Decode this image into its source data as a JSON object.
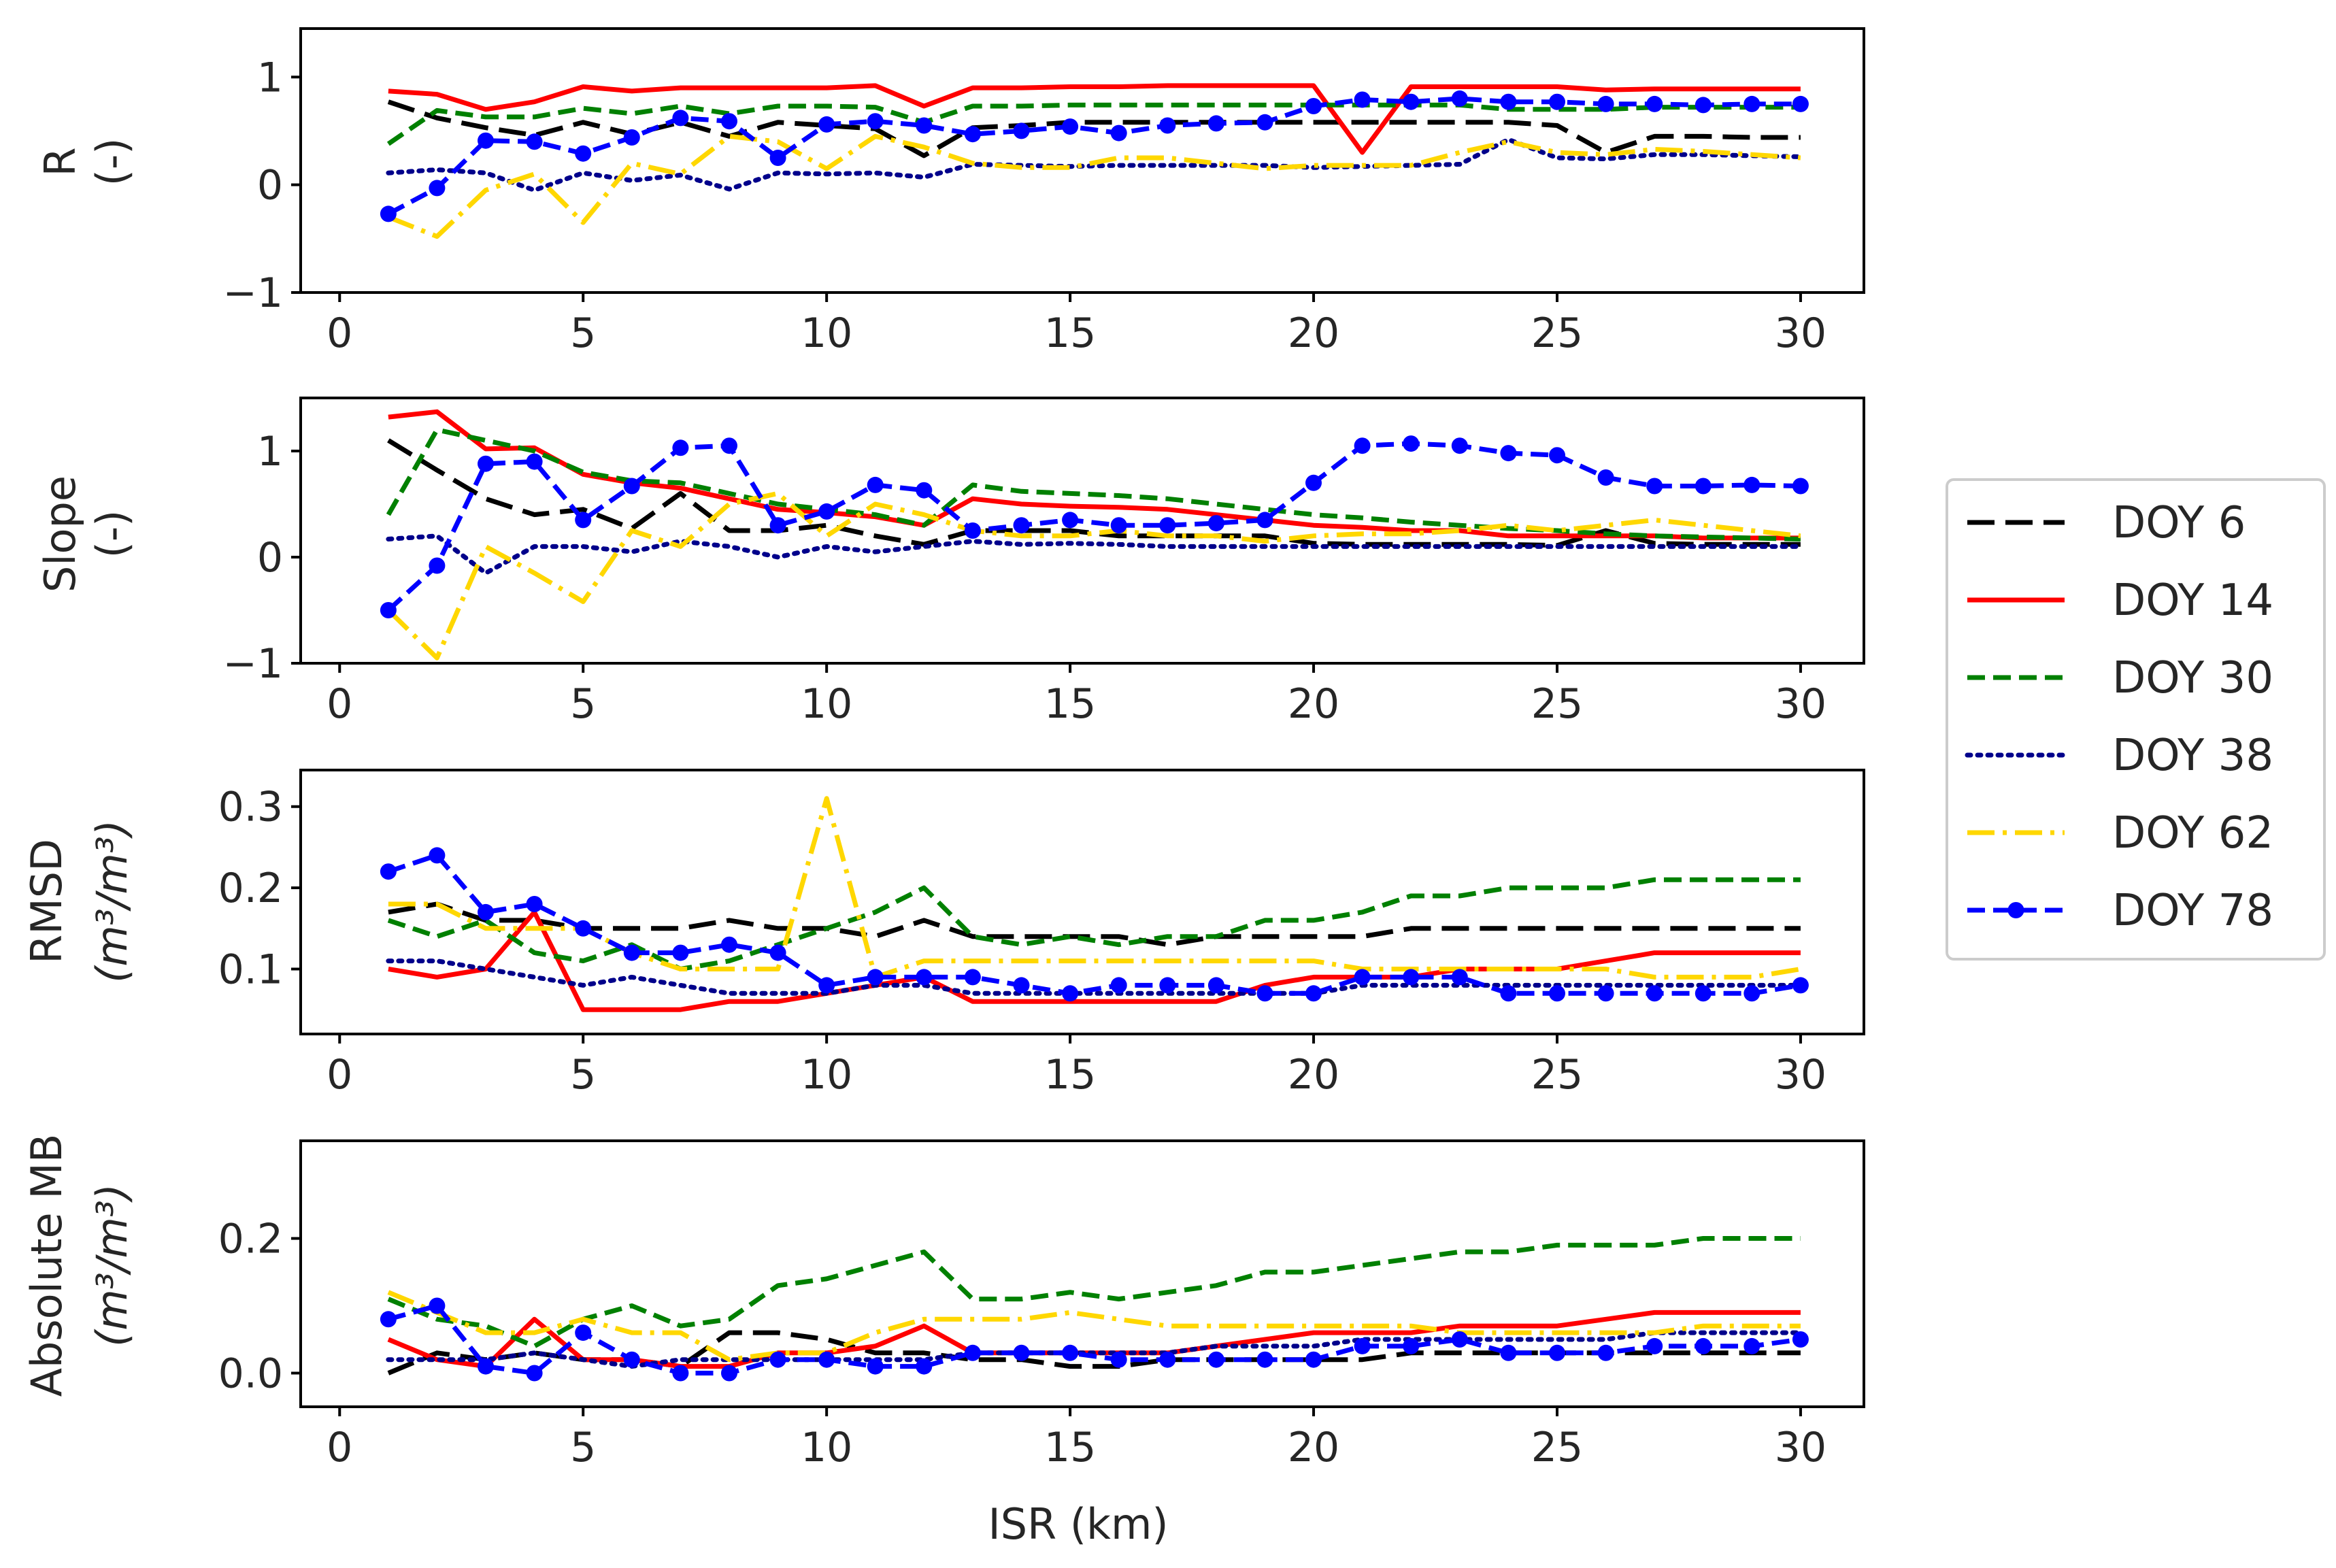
{
  "figure": {
    "xlabel": "ISR (km)",
    "legend_position": "center-right",
    "legend_title": ""
  },
  "chart_data": [
    {
      "type": "line",
      "title": "",
      "xlabel": "",
      "ylabel": "R",
      "ylabel_unit": "(-)",
      "xlim": [
        -0.8,
        31.3
      ],
      "ylim": [
        -1,
        1.45
      ],
      "xticks": [
        0,
        5,
        10,
        15,
        20,
        25,
        30
      ],
      "yticks": [
        -1,
        0,
        1
      ],
      "ytick_labels": [
        "−1",
        "0",
        "1"
      ],
      "x": [
        1,
        2,
        3,
        4,
        5,
        6,
        7,
        8,
        9,
        10,
        11,
        12,
        13,
        14,
        15,
        16,
        17,
        18,
        19,
        20,
        21,
        22,
        23,
        24,
        25,
        26,
        27,
        28,
        29,
        30
      ],
      "series": [
        {
          "name": "DOY 6",
          "color": "#000000",
          "values": [
            0.77,
            0.62,
            0.53,
            0.46,
            0.58,
            0.47,
            0.58,
            0.45,
            0.58,
            0.55,
            0.52,
            0.27,
            0.53,
            0.55,
            0.58,
            0.58,
            0.58,
            0.58,
            0.58,
            0.58,
            0.58,
            0.58,
            0.58,
            0.58,
            0.55,
            0.3,
            0.45,
            0.45,
            0.44,
            0.44
          ]
        },
        {
          "name": "DOY 14",
          "color": "#ff0000",
          "values": [
            0.87,
            0.84,
            0.7,
            0.77,
            0.91,
            0.87,
            0.9,
            0.9,
            0.9,
            0.9,
            0.92,
            0.73,
            0.9,
            0.9,
            0.91,
            0.91,
            0.92,
            0.92,
            0.92,
            0.92,
            0.3,
            0.91,
            0.91,
            0.91,
            0.91,
            0.88,
            0.89,
            0.89,
            0.89,
            0.89
          ]
        },
        {
          "name": "DOY 30",
          "color": "#008000",
          "values": [
            0.38,
            0.69,
            0.63,
            0.63,
            0.71,
            0.66,
            0.73,
            0.66,
            0.73,
            0.73,
            0.72,
            0.58,
            0.73,
            0.73,
            0.74,
            0.74,
            0.74,
            0.74,
            0.74,
            0.74,
            0.74,
            0.74,
            0.74,
            0.7,
            0.7,
            0.7,
            0.72,
            0.72,
            0.72,
            0.72
          ]
        },
        {
          "name": "DOY 38",
          "color": "#00008b",
          "values": [
            0.11,
            0.14,
            0.11,
            -0.05,
            0.11,
            0.04,
            0.09,
            -0.04,
            0.11,
            0.1,
            0.11,
            0.07,
            0.19,
            0.18,
            0.17,
            0.18,
            0.18,
            0.18,
            0.18,
            0.16,
            0.17,
            0.18,
            0.19,
            0.42,
            0.25,
            0.24,
            0.28,
            0.28,
            0.27,
            0.26
          ]
        },
        {
          "name": "DOY 62",
          "color": "#ffd700",
          "values": [
            -0.3,
            -0.48,
            -0.05,
            0.1,
            -0.35,
            0.2,
            0.1,
            0.45,
            0.4,
            0.15,
            0.45,
            0.35,
            0.2,
            0.16,
            0.16,
            0.25,
            0.25,
            0.2,
            0.15,
            0.18,
            0.18,
            0.18,
            0.3,
            0.4,
            0.3,
            0.28,
            0.33,
            0.31,
            0.28,
            0.25
          ]
        },
        {
          "name": "DOY 78",
          "color": "#0000ff",
          "values": [
            -0.27,
            -0.03,
            0.41,
            0.4,
            0.29,
            0.44,
            0.62,
            0.59,
            0.25,
            0.56,
            0.59,
            0.55,
            0.47,
            0.5,
            0.54,
            0.48,
            0.55,
            0.57,
            0.58,
            0.73,
            0.79,
            0.77,
            0.8,
            0.77,
            0.77,
            0.75,
            0.75,
            0.74,
            0.75,
            0.75
          ]
        }
      ]
    },
    {
      "type": "line",
      "title": "",
      "xlabel": "",
      "ylabel": "Slope",
      "ylabel_unit": "(-)",
      "xlim": [
        -0.8,
        31.3
      ],
      "ylim": [
        -1,
        1.5
      ],
      "xticks": [
        0,
        5,
        10,
        15,
        20,
        25,
        30
      ],
      "yticks": [
        -1,
        0,
        1
      ],
      "ytick_labels": [
        "−1",
        "0",
        "1"
      ],
      "x": [
        1,
        2,
        3,
        4,
        5,
        6,
        7,
        8,
        9,
        10,
        11,
        12,
        13,
        14,
        15,
        16,
        17,
        18,
        19,
        20,
        21,
        22,
        23,
        24,
        25,
        26,
        27,
        28,
        29,
        30
      ],
      "series": [
        {
          "name": "DOY 6",
          "color": "#000000",
          "values": [
            1.1,
            0.82,
            0.55,
            0.4,
            0.45,
            0.27,
            0.6,
            0.25,
            0.25,
            0.3,
            0.2,
            0.12,
            0.25,
            0.25,
            0.25,
            0.2,
            0.2,
            0.2,
            0.2,
            0.13,
            0.12,
            0.12,
            0.12,
            0.12,
            0.11,
            0.25,
            0.13,
            0.12,
            0.12,
            0.12
          ]
        },
        {
          "name": "DOY 14",
          "color": "#ff0000",
          "values": [
            1.32,
            1.37,
            1.02,
            1.03,
            0.78,
            0.7,
            0.65,
            0.55,
            0.45,
            0.42,
            0.38,
            0.3,
            0.55,
            0.5,
            0.48,
            0.47,
            0.45,
            0.4,
            0.35,
            0.3,
            0.28,
            0.25,
            0.25,
            0.2,
            0.2,
            0.2,
            0.2,
            0.18,
            0.18,
            0.18
          ]
        },
        {
          "name": "DOY 30",
          "color": "#008000",
          "values": [
            0.4,
            1.2,
            1.1,
            1.0,
            0.8,
            0.72,
            0.7,
            0.6,
            0.5,
            0.45,
            0.4,
            0.3,
            0.68,
            0.62,
            0.6,
            0.58,
            0.55,
            0.5,
            0.45,
            0.4,
            0.37,
            0.33,
            0.3,
            0.27,
            0.25,
            0.22,
            0.2,
            0.19,
            0.18,
            0.17
          ]
        },
        {
          "name": "DOY 38",
          "color": "#00008b",
          "values": [
            0.17,
            0.2,
            -0.15,
            0.1,
            0.1,
            0.05,
            0.15,
            0.1,
            0.0,
            0.1,
            0.05,
            0.1,
            0.15,
            0.12,
            0.13,
            0.12,
            0.1,
            0.1,
            0.1,
            0.1,
            0.1,
            0.1,
            0.1,
            0.1,
            0.1,
            0.1,
            0.1,
            0.1,
            0.1,
            0.1
          ]
        },
        {
          "name": "DOY 62",
          "color": "#ffd700",
          "values": [
            -0.5,
            -0.95,
            0.1,
            -0.15,
            -0.42,
            0.25,
            0.1,
            0.5,
            0.6,
            0.2,
            0.5,
            0.4,
            0.25,
            0.2,
            0.2,
            0.25,
            0.2,
            0.2,
            0.15,
            0.2,
            0.22,
            0.22,
            0.25,
            0.3,
            0.25,
            0.3,
            0.35,
            0.3,
            0.25,
            0.2
          ]
        },
        {
          "name": "DOY 78",
          "color": "#0000ff",
          "values": [
            -0.5,
            -0.08,
            0.88,
            0.9,
            0.35,
            0.67,
            1.03,
            1.05,
            0.3,
            0.43,
            0.68,
            0.63,
            0.25,
            0.3,
            0.35,
            0.3,
            0.3,
            0.32,
            0.35,
            0.7,
            1.05,
            1.07,
            1.05,
            0.98,
            0.96,
            0.75,
            0.67,
            0.67,
            0.68,
            0.67
          ]
        }
      ]
    },
    {
      "type": "line",
      "title": "",
      "xlabel": "",
      "ylabel": "RMSD",
      "ylabel_unit": "(m³/m³)",
      "xlim": [
        -0.8,
        31.3
      ],
      "ylim": [
        0.02,
        0.345
      ],
      "xticks": [
        0,
        5,
        10,
        15,
        20,
        25,
        30
      ],
      "yticks": [
        0.1,
        0.2,
        0.3
      ],
      "ytick_labels": [
        "0.1",
        "0.2",
        "0.3"
      ],
      "x": [
        1,
        2,
        3,
        4,
        5,
        6,
        7,
        8,
        9,
        10,
        11,
        12,
        13,
        14,
        15,
        16,
        17,
        18,
        19,
        20,
        21,
        22,
        23,
        24,
        25,
        26,
        27,
        28,
        29,
        30
      ],
      "series": [
        {
          "name": "DOY 6",
          "color": "#000000",
          "values": [
            0.17,
            0.18,
            0.16,
            0.16,
            0.15,
            0.15,
            0.15,
            0.16,
            0.15,
            0.15,
            0.14,
            0.16,
            0.14,
            0.14,
            0.14,
            0.14,
            0.13,
            0.14,
            0.14,
            0.14,
            0.14,
            0.15,
            0.15,
            0.15,
            0.15,
            0.15,
            0.15,
            0.15,
            0.15,
            0.15
          ]
        },
        {
          "name": "DOY 14",
          "color": "#ff0000",
          "values": [
            0.1,
            0.09,
            0.1,
            0.17,
            0.05,
            0.05,
            0.05,
            0.06,
            0.06,
            0.07,
            0.08,
            0.09,
            0.06,
            0.06,
            0.06,
            0.06,
            0.06,
            0.06,
            0.08,
            0.09,
            0.09,
            0.09,
            0.1,
            0.1,
            0.1,
            0.11,
            0.12,
            0.12,
            0.12,
            0.12
          ]
        },
        {
          "name": "DOY 30",
          "color": "#008000",
          "values": [
            0.16,
            0.14,
            0.16,
            0.12,
            0.11,
            0.13,
            0.1,
            0.11,
            0.13,
            0.15,
            0.17,
            0.2,
            0.14,
            0.13,
            0.14,
            0.13,
            0.14,
            0.14,
            0.16,
            0.16,
            0.17,
            0.19,
            0.19,
            0.2,
            0.2,
            0.2,
            0.21,
            0.21,
            0.21,
            0.21
          ]
        },
        {
          "name": "DOY 38",
          "color": "#00008b",
          "values": [
            0.11,
            0.11,
            0.1,
            0.09,
            0.08,
            0.09,
            0.08,
            0.07,
            0.07,
            0.07,
            0.08,
            0.08,
            0.07,
            0.07,
            0.07,
            0.07,
            0.07,
            0.07,
            0.07,
            0.07,
            0.08,
            0.08,
            0.08,
            0.08,
            0.08,
            0.08,
            0.08,
            0.08,
            0.08,
            0.08
          ]
        },
        {
          "name": "DOY 62",
          "color": "#ffd700",
          "values": [
            0.18,
            0.18,
            0.15,
            0.15,
            0.15,
            0.12,
            0.1,
            0.1,
            0.1,
            0.31,
            0.09,
            0.11,
            0.11,
            0.11,
            0.11,
            0.11,
            0.11,
            0.11,
            0.11,
            0.11,
            0.1,
            0.1,
            0.1,
            0.1,
            0.1,
            0.1,
            0.09,
            0.09,
            0.09,
            0.1
          ]
        },
        {
          "name": "DOY 78",
          "color": "#0000ff",
          "values": [
            0.22,
            0.24,
            0.17,
            0.18,
            0.15,
            0.12,
            0.12,
            0.13,
            0.12,
            0.08,
            0.09,
            0.09,
            0.09,
            0.08,
            0.07,
            0.08,
            0.08,
            0.08,
            0.07,
            0.07,
            0.09,
            0.09,
            0.09,
            0.07,
            0.07,
            0.07,
            0.07,
            0.07,
            0.07,
            0.08
          ]
        }
      ]
    },
    {
      "type": "line",
      "title": "",
      "xlabel": "ISR (km)",
      "ylabel": "Absolute MB",
      "ylabel_unit": "(m³/m³)",
      "xlim": [
        -0.8,
        31.3
      ],
      "ylim": [
        -0.05,
        0.345
      ],
      "xticks": [
        0,
        5,
        10,
        15,
        20,
        25,
        30
      ],
      "yticks": [
        0.0,
        0.2
      ],
      "ytick_labels": [
        "0.0",
        "0.2"
      ],
      "x": [
        1,
        2,
        3,
        4,
        5,
        6,
        7,
        8,
        9,
        10,
        11,
        12,
        13,
        14,
        15,
        16,
        17,
        18,
        19,
        20,
        21,
        22,
        23,
        24,
        25,
        26,
        27,
        28,
        29,
        30
      ],
      "series": [
        {
          "name": "DOY 6",
          "color": "#000000",
          "values": [
            0.0,
            0.03,
            0.02,
            0.03,
            0.02,
            0.02,
            0.01,
            0.06,
            0.06,
            0.05,
            0.03,
            0.03,
            0.02,
            0.02,
            0.01,
            0.01,
            0.02,
            0.02,
            0.02,
            0.02,
            0.02,
            0.03,
            0.03,
            0.03,
            0.03,
            0.03,
            0.03,
            0.03,
            0.03,
            0.03
          ]
        },
        {
          "name": "DOY 14",
          "color": "#ff0000",
          "values": [
            0.05,
            0.02,
            0.01,
            0.08,
            0.02,
            0.02,
            0.01,
            0.01,
            0.03,
            0.03,
            0.04,
            0.07,
            0.03,
            0.03,
            0.03,
            0.03,
            0.03,
            0.04,
            0.05,
            0.06,
            0.06,
            0.06,
            0.07,
            0.07,
            0.07,
            0.08,
            0.09,
            0.09,
            0.09,
            0.09
          ]
        },
        {
          "name": "DOY 30",
          "color": "#008000",
          "values": [
            0.11,
            0.08,
            0.07,
            0.04,
            0.08,
            0.1,
            0.07,
            0.08,
            0.13,
            0.14,
            0.16,
            0.18,
            0.11,
            0.11,
            0.12,
            0.11,
            0.12,
            0.13,
            0.15,
            0.15,
            0.16,
            0.17,
            0.18,
            0.18,
            0.19,
            0.19,
            0.19,
            0.2,
            0.2,
            0.2
          ]
        },
        {
          "name": "DOY 38",
          "color": "#00008b",
          "values": [
            0.02,
            0.02,
            0.02,
            0.03,
            0.02,
            0.01,
            0.02,
            0.02,
            0.02,
            0.02,
            0.02,
            0.02,
            0.03,
            0.03,
            0.03,
            0.03,
            0.03,
            0.04,
            0.04,
            0.04,
            0.05,
            0.05,
            0.05,
            0.05,
            0.05,
            0.05,
            0.06,
            0.06,
            0.06,
            0.06
          ]
        },
        {
          "name": "DOY 62",
          "color": "#ffd700",
          "values": [
            0.12,
            0.09,
            0.06,
            0.06,
            0.08,
            0.06,
            0.06,
            0.02,
            0.03,
            0.03,
            0.06,
            0.08,
            0.08,
            0.08,
            0.09,
            0.08,
            0.07,
            0.07,
            0.07,
            0.07,
            0.07,
            0.07,
            0.06,
            0.06,
            0.06,
            0.06,
            0.06,
            0.07,
            0.07,
            0.07
          ]
        },
        {
          "name": "DOY 78",
          "color": "#0000ff",
          "values": [
            0.08,
            0.1,
            0.01,
            0.0,
            0.06,
            0.02,
            0.0,
            0.0,
            0.02,
            0.02,
            0.01,
            0.01,
            0.03,
            0.03,
            0.03,
            0.02,
            0.02,
            0.02,
            0.02,
            0.02,
            0.04,
            0.04,
            0.05,
            0.03,
            0.03,
            0.03,
            0.04,
            0.04,
            0.04,
            0.05
          ]
        }
      ]
    }
  ]
}
